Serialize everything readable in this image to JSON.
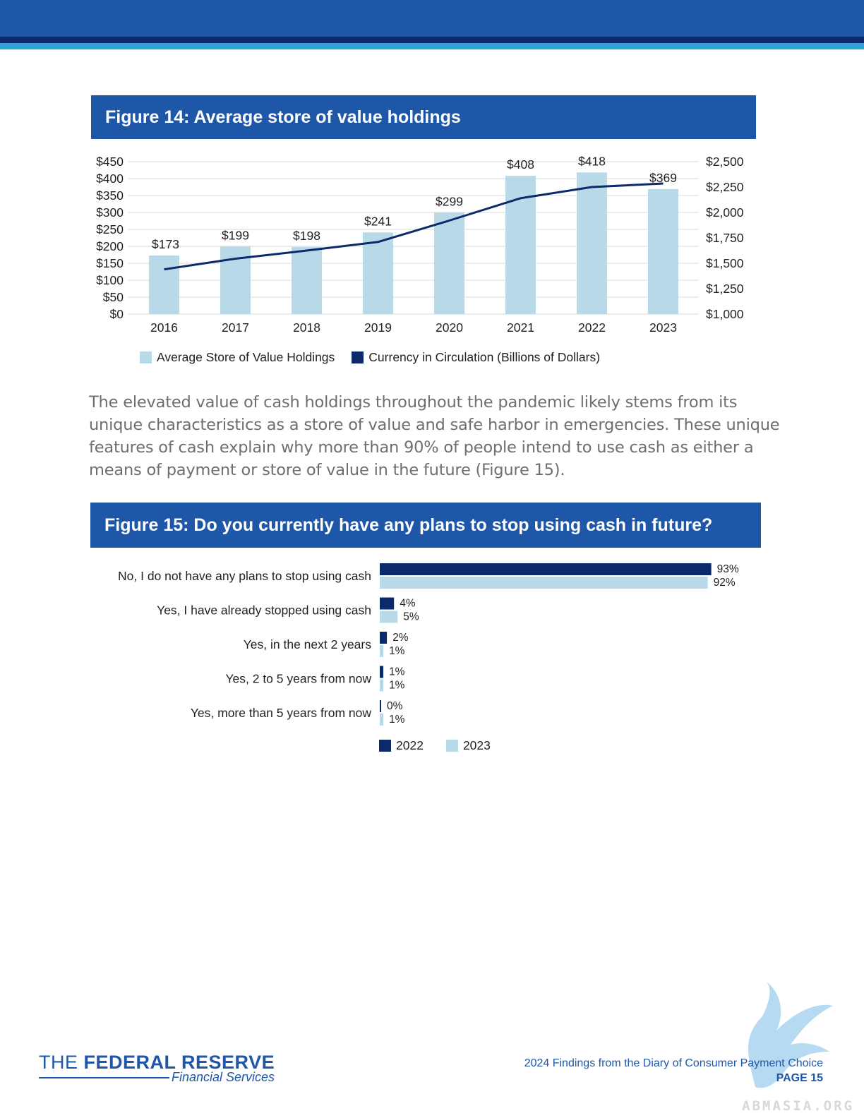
{
  "fig14": {
    "title": "Figure 14: Average store of value holdings",
    "legend": [
      {
        "label": "Average Store of Value Holdings",
        "color": "#b7d9e8"
      },
      {
        "label": "Currency in Circulation (Billions of Dollars)",
        "color": "#0b2a6b"
      }
    ]
  },
  "paragraph": "The elevated value of cash holdings throughout the pandemic likely stems from its unique characteristics as a store of value and safe harbor in emergencies. These unique features of cash explain why more than 90% of people intend to use cash as either a means of payment or store of value in the future (Figure 15).",
  "fig15": {
    "title": "Figure 15: Do you currently have any plans to stop using cash in future?",
    "legend": [
      {
        "label": "2022",
        "color": "#0b2a6b"
      },
      {
        "label": "2023",
        "color": "#b7d9e8"
      }
    ]
  },
  "footer": {
    "logo_light": "THE",
    "logo_bold": "FEDERAL RESERVE",
    "logo_sub": "Financial Services",
    "report_title": "2024 Findings from the Diary of Consumer Payment Choice",
    "page": "PAGE 15",
    "watermark": "ABMASIA.ORG"
  },
  "chart_data": [
    {
      "type": "bar",
      "title": "Figure 14: Average store of value holdings",
      "categories": [
        "2016",
        "2017",
        "2018",
        "2019",
        "2020",
        "2021",
        "2022",
        "2023"
      ],
      "series": [
        {
          "name": "Average Store of Value Holdings",
          "type": "bar",
          "axis": "left",
          "values": [
            173,
            199,
            198,
            241,
            299,
            408,
            418,
            369
          ],
          "labels": [
            "$173",
            "$199",
            "$198",
            "$241",
            "$299",
            "$408",
            "$418",
            "$369"
          ],
          "color": "#b7d9e8"
        },
        {
          "name": "Currency in Circulation (Billions of Dollars)",
          "type": "line",
          "axis": "right",
          "values": [
            1440,
            1545,
            1625,
            1710,
            1920,
            2140,
            2250,
            2285
          ],
          "color": "#0b2a6b"
        }
      ],
      "left_axis": {
        "ylim": [
          0,
          450
        ],
        "ticks": [
          "$0",
          "$50",
          "$100",
          "$150",
          "$200",
          "$250",
          "$300",
          "$350",
          "$400",
          "$450"
        ]
      },
      "right_axis": {
        "ylim": [
          1000,
          2500
        ],
        "ticks": [
          "$1,000",
          "$1,250",
          "$1,500",
          "$1,750",
          "$2,000",
          "$2,250",
          "$2,500"
        ]
      },
      "grid": true,
      "legend_position": "bottom"
    },
    {
      "type": "bar",
      "orientation": "horizontal",
      "title": "Figure 15: Do you currently have any plans to stop using cash in future?",
      "categories": [
        "No, I do not have any plans to stop using cash",
        "Yes, I have already stopped using cash",
        "Yes, in the next 2 years",
        "Yes, 2 to 5 years from now",
        "Yes, more than 5 years from now"
      ],
      "series": [
        {
          "name": "2022",
          "values": [
            93,
            4,
            2,
            1,
            0
          ],
          "labels": [
            "93%",
            "4%",
            "2%",
            "1%",
            "0%"
          ],
          "color": "#0b2a6b"
        },
        {
          "name": "2023",
          "values": [
            92,
            5,
            1,
            1,
            1
          ],
          "labels": [
            "92%",
            "5%",
            "1%",
            "1%",
            "1%"
          ],
          "color": "#b7d9e8"
        }
      ],
      "xlim": [
        0,
        100
      ],
      "grid": false,
      "legend_position": "bottom"
    }
  ]
}
